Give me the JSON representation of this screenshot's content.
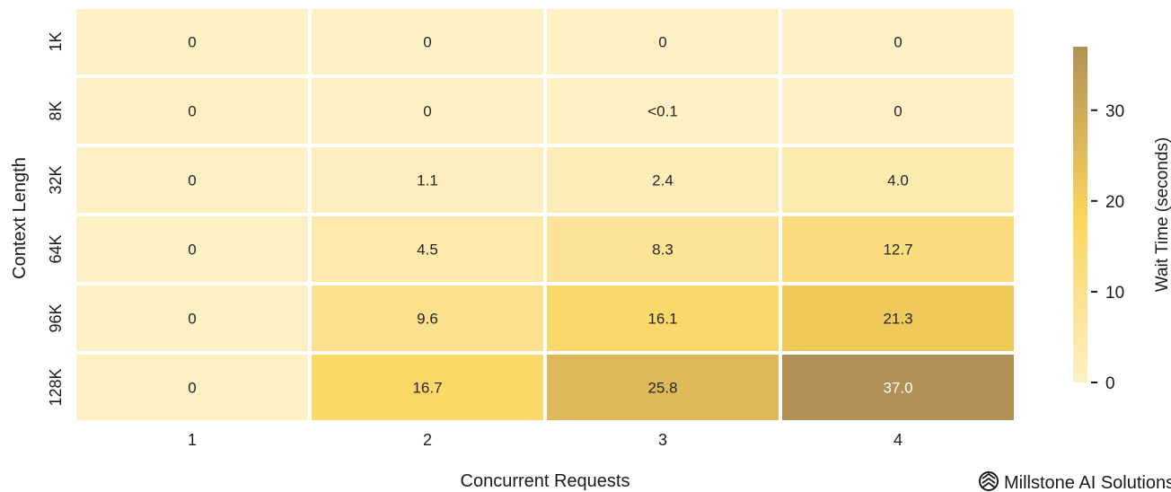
{
  "chart_data": {
    "type": "heatmap",
    "xlabel": "Concurrent Requests",
    "ylabel": "Context Length",
    "x_categories": [
      "1",
      "2",
      "3",
      "4"
    ],
    "y_categories": [
      "1K",
      "8K",
      "32K",
      "64K",
      "96K",
      "128K"
    ],
    "values": [
      [
        0,
        0,
        0,
        0
      ],
      [
        0,
        0,
        0.05,
        0
      ],
      [
        0,
        1.1,
        2.4,
        4.0
      ],
      [
        0,
        4.5,
        8.3,
        12.7
      ],
      [
        0,
        9.6,
        16.1,
        21.3
      ],
      [
        0,
        16.7,
        25.8,
        37.0
      ]
    ],
    "cell_labels": [
      [
        "0",
        "0",
        "0",
        "0"
      ],
      [
        "0",
        "0",
        "<0.1",
        "0"
      ],
      [
        "0",
        "1.1",
        "2.4",
        "4.0"
      ],
      [
        "0",
        "4.5",
        "8.3",
        "12.7"
      ],
      [
        "0",
        "9.6",
        "16.1",
        "21.3"
      ],
      [
        "0",
        "16.7",
        "25.8",
        "37.0"
      ]
    ],
    "colorbar": {
      "label": "Wait Time (seconds)",
      "range": [
        0,
        37
      ],
      "ticks": [
        0,
        10,
        20,
        30
      ],
      "tick_labels": [
        "0",
        "10",
        "20",
        "30"
      ],
      "colors": [
        "#fdf0c4",
        "#fad45c",
        "#b39055"
      ]
    }
  },
  "branding": {
    "text": "Millstone AI Solutions",
    "icon": "millstone-logo-icon"
  }
}
